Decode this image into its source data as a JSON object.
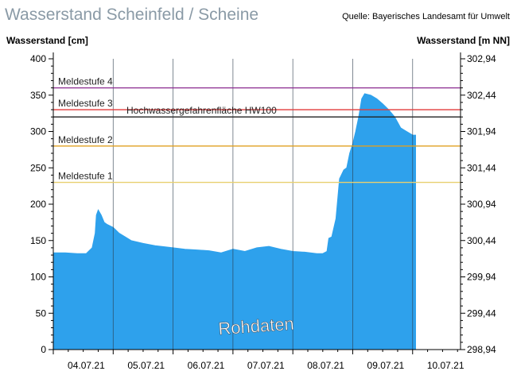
{
  "header": {
    "title": "Wasserstand Scheinfeld / Scheine",
    "source": "Quelle: Bayerisches Landesamt für Umwelt"
  },
  "chart_data": {
    "type": "area",
    "ylabel_left": "Wasserstand [cm]",
    "ylabel_right": "Wasserstand [m NN]",
    "ylim": [
      0,
      400
    ],
    "y_ticks": [
      "0",
      "50",
      "100",
      "150",
      "200",
      "250",
      "300",
      "350",
      "400"
    ],
    "y2_ticks": [
      "298,94",
      "299,44",
      "299,94",
      "300,44",
      "300,94",
      "301,44",
      "301,94",
      "302,44",
      "302,94"
    ],
    "x_range_days": [
      0,
      6.8
    ],
    "x_ticks": [
      "04.07.21",
      "05.07.21",
      "06.07.21",
      "07.07.21",
      "08.07.21",
      "09.07.21",
      "10.07.21"
    ],
    "watermark": "Rohdaten",
    "thresholds": [
      {
        "name": "Meldestufe 4",
        "value": 360,
        "color": "#8b2a8f"
      },
      {
        "name": "Meldestufe 3",
        "value": 330,
        "color": "#e23a3a"
      },
      {
        "name": "Hochwassergefahrenfläche HW100",
        "value": 320,
        "color": "#222222"
      },
      {
        "name": "Meldestufe 2",
        "value": 280,
        "color": "#e0a020"
      },
      {
        "name": "Meldestufe 1",
        "value": 230,
        "color": "#e8d070"
      }
    ],
    "series": [
      {
        "color": "#2ea1ec",
        "x": [
          0,
          0.2,
          0.4,
          0.55,
          0.65,
          0.7,
          0.72,
          0.75,
          0.8,
          0.85,
          0.9,
          1.0,
          1.1,
          1.2,
          1.3,
          1.5,
          1.7,
          2.0,
          2.2,
          2.4,
          2.6,
          2.8,
          3.0,
          3.2,
          3.4,
          3.6,
          3.8,
          4.0,
          4.2,
          4.4,
          4.5,
          4.57,
          4.6,
          4.65,
          4.72,
          4.78,
          4.85,
          4.9,
          4.95,
          5.0,
          5.05,
          5.1,
          5.15,
          5.2,
          5.3,
          5.4,
          5.5,
          5.6,
          5.7,
          5.8,
          5.9,
          6.0,
          6.05
        ],
        "y": [
          133,
          133,
          132,
          132,
          140,
          160,
          185,
          192,
          185,
          175,
          172,
          168,
          160,
          155,
          150,
          146,
          143,
          140,
          138,
          137,
          136,
          133,
          138,
          135,
          140,
          142,
          138,
          135,
          134,
          132,
          132,
          135,
          153,
          155,
          180,
          235,
          247,
          250,
          270,
          283,
          300,
          320,
          345,
          352,
          350,
          345,
          338,
          330,
          320,
          305,
          300,
          295,
          295
        ]
      }
    ]
  }
}
